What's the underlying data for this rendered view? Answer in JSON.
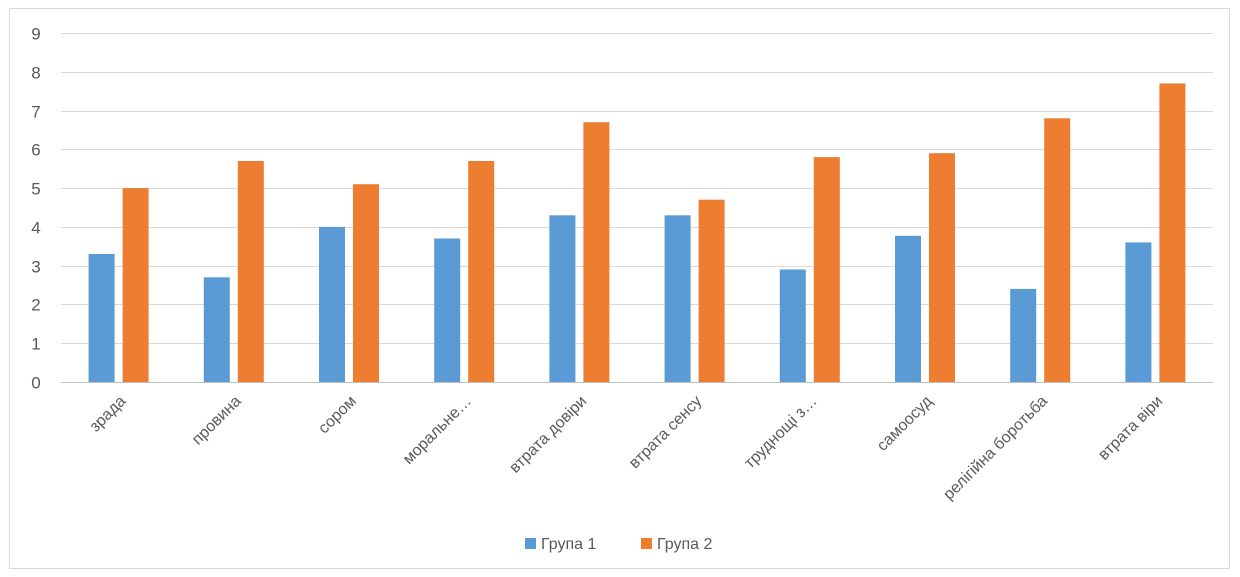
{
  "chart_data": {
    "type": "bar",
    "categories": [
      "зрада",
      "провина",
      "сором",
      "моральне…",
      "втрата довіри",
      "втрата сенсу",
      "труднощі з…",
      "самоосуд",
      "релігійна боротьба",
      "втрата віри"
    ],
    "series": [
      {
        "name": "Група 1",
        "color": "#5b9bd5",
        "values": [
          3.3,
          2.7,
          4.0,
          3.7,
          4.3,
          4.3,
          2.9,
          3.77,
          2.4,
          3.6
        ]
      },
      {
        "name": "Група 2",
        "color": "#ed7d31",
        "values": [
          5.0,
          5.7,
          5.1,
          5.7,
          6.7,
          4.7,
          5.8,
          5.9,
          6.8,
          7.7
        ]
      }
    ],
    "ylim": [
      0,
      9
    ],
    "yticks": [
      0,
      1,
      2,
      3,
      4,
      5,
      6,
      7,
      8,
      9
    ],
    "grid": true,
    "legend_position": "bottom",
    "title": "",
    "xlabel": "",
    "ylabel": ""
  }
}
